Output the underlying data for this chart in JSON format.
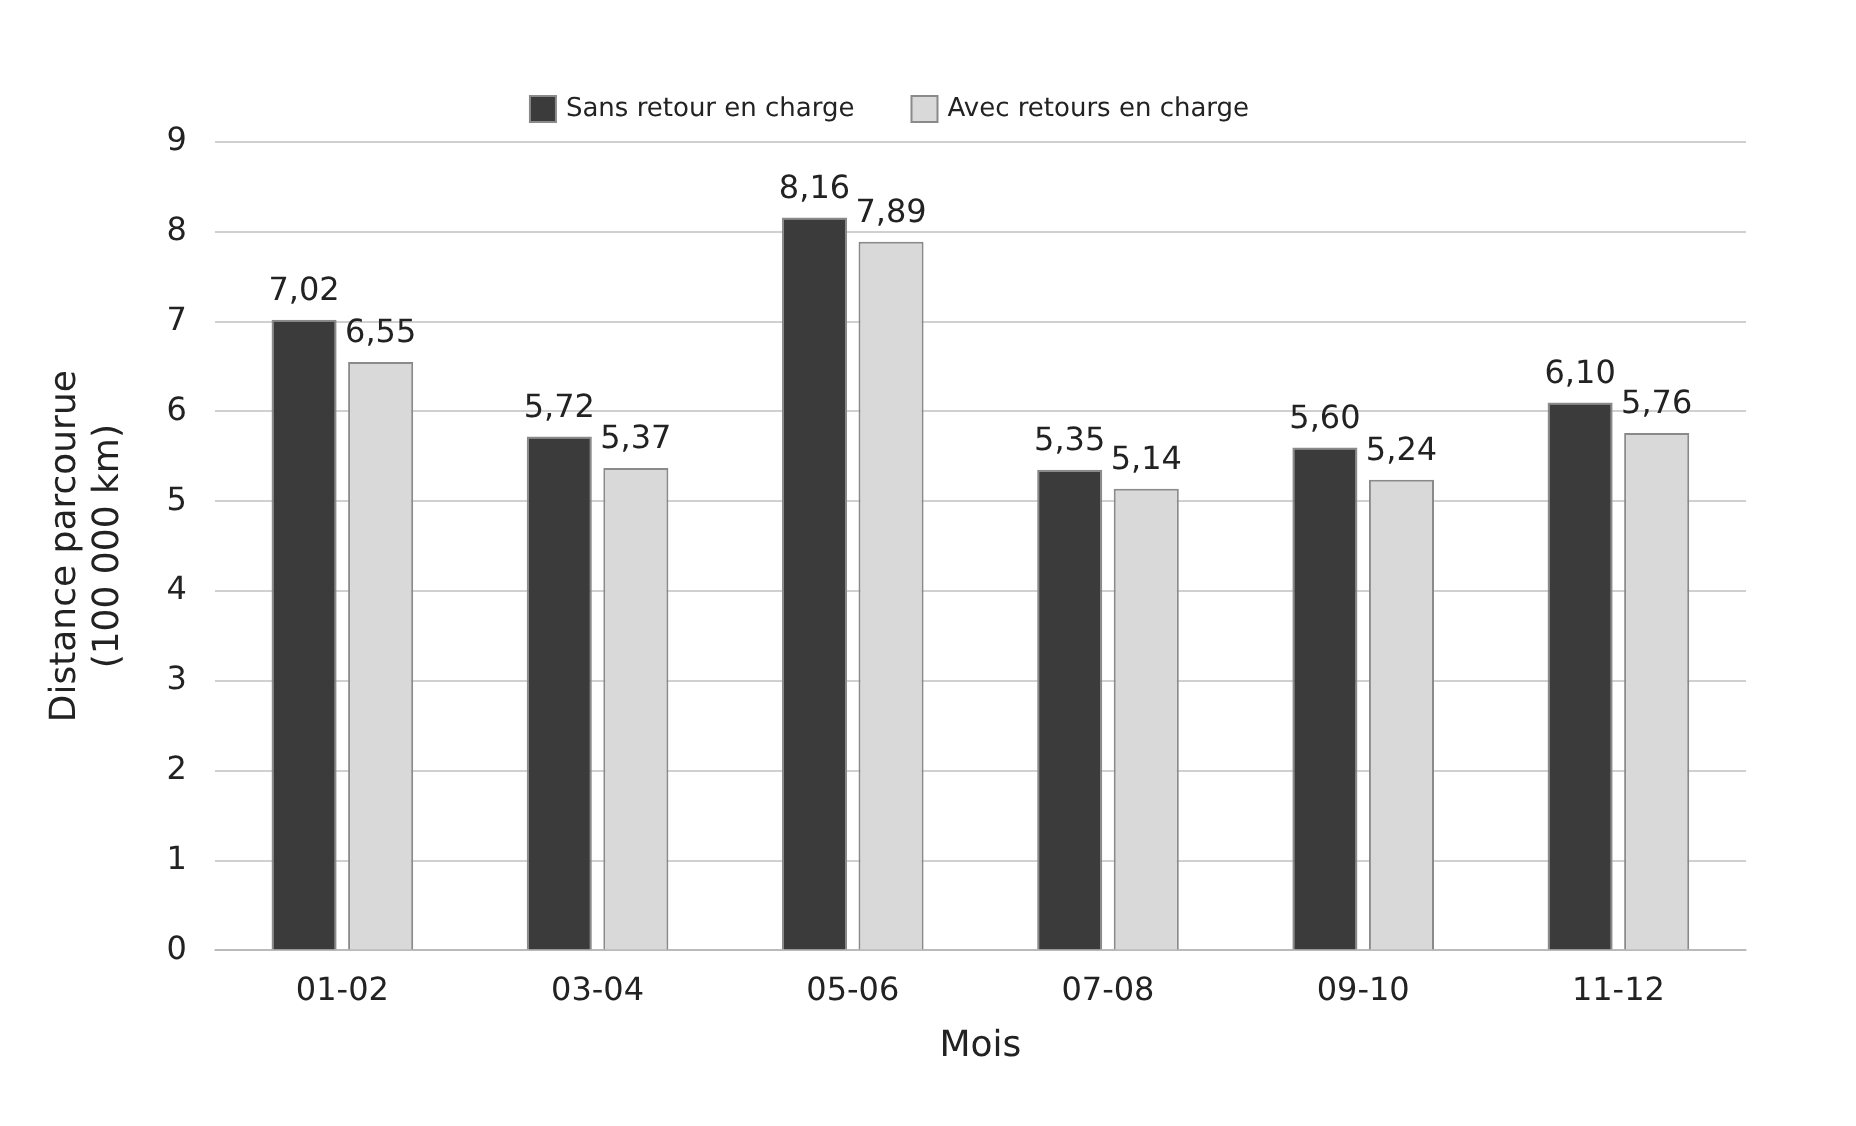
{
  "chart_data": {
    "type": "bar",
    "xlabel": "Mois",
    "ylabel": "Distance parcourue\n(100 000 km)",
    "categories": [
      "01-02",
      "03-04",
      "05-06",
      "07-08",
      "09-10",
      "11-12"
    ],
    "series": [
      {
        "name": "Sans retour en charge",
        "color": "#3b3b3b",
        "values": [
          7.02,
          5.72,
          8.16,
          5.35,
          5.6,
          6.1
        ],
        "value_labels": [
          "7,02",
          "5,72",
          "8,16",
          "5,35",
          "5,60",
          "6,10"
        ]
      },
      {
        "name": "Avec retours en charge",
        "color": "#d9d9d9",
        "values": [
          6.55,
          5.37,
          7.89,
          5.14,
          5.24,
          5.76
        ],
        "value_labels": [
          "6,55",
          "5,37",
          "7,89",
          "5,14",
          "5,24",
          "5,76"
        ]
      }
    ],
    "ylim": [
      0,
      9
    ],
    "yticks": [
      0,
      1,
      2,
      3,
      4,
      5,
      6,
      7,
      8,
      9
    ],
    "grid": "y",
    "legend": "top"
  }
}
